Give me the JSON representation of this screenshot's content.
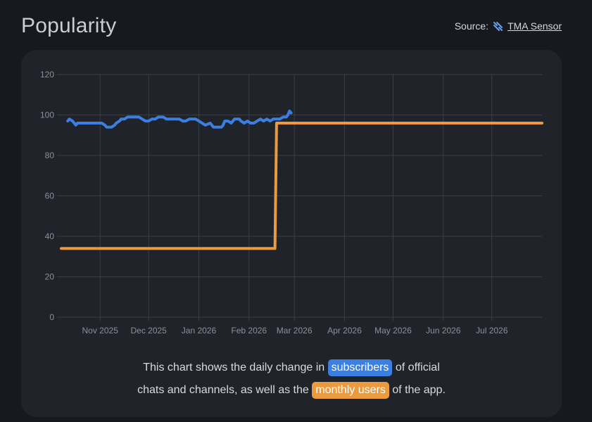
{
  "header": {
    "title": "Popularity",
    "source_prefix": "Source:",
    "source_name": "TMA Sensor",
    "source_icon": "tma-sensor-icon"
  },
  "colors": {
    "background": "#16191d",
    "card": "#20242a",
    "grid": "#3a3f45",
    "subscribers": "#3b7fe0",
    "monthly_users": "#eb9a3e"
  },
  "chart_data": {
    "type": "line",
    "title": "",
    "xlabel": "",
    "ylabel": "",
    "ylim": [
      0,
      120
    ],
    "yticks": [
      0,
      20,
      40,
      60,
      80,
      100,
      120
    ],
    "x_tick_labels": [
      "Nov 2025",
      "Dec 2025",
      "Jan 2026",
      "Feb 2026",
      "Mar 2026",
      "Apr 2026",
      "May 2026",
      "Jun 2026",
      "Jul 2026"
    ],
    "x_ticks": [
      "2025-11-01",
      "2025-12-01",
      "2026-01-01",
      "2026-02-01",
      "2026-03-01",
      "2026-04-01",
      "2026-05-01",
      "2026-06-01",
      "2026-07-01"
    ],
    "xlim": [
      "2025-10-08",
      "2026-08-01"
    ],
    "grid": true,
    "legend": "none",
    "series": [
      {
        "key": "subscribers",
        "color": "#3b7fe0",
        "points": [
          [
            "2025-10-12",
            97
          ],
          [
            "2025-10-13",
            98
          ],
          [
            "2025-10-15",
            97
          ],
          [
            "2025-10-16",
            96
          ],
          [
            "2025-10-17",
            95
          ],
          [
            "2025-10-18",
            96
          ],
          [
            "2025-10-22",
            96
          ],
          [
            "2025-10-26",
            96
          ],
          [
            "2025-10-30",
            96
          ],
          [
            "2025-11-02",
            96
          ],
          [
            "2025-11-04",
            95
          ],
          [
            "2025-11-05",
            94
          ],
          [
            "2025-11-08",
            94
          ],
          [
            "2025-11-10",
            95
          ],
          [
            "2025-11-11",
            96
          ],
          [
            "2025-11-13",
            97
          ],
          [
            "2025-11-14",
            98
          ],
          [
            "2025-11-16",
            98
          ],
          [
            "2025-11-18",
            99
          ],
          [
            "2025-11-22",
            99
          ],
          [
            "2025-11-25",
            99
          ],
          [
            "2025-11-27",
            98
          ],
          [
            "2025-11-29",
            97
          ],
          [
            "2025-12-01",
            97
          ],
          [
            "2025-12-03",
            98
          ],
          [
            "2025-12-05",
            98
          ],
          [
            "2025-12-07",
            99
          ],
          [
            "2025-12-10",
            99
          ],
          [
            "2025-12-12",
            98
          ],
          [
            "2025-12-16",
            98
          ],
          [
            "2025-12-20",
            98
          ],
          [
            "2025-12-22",
            97
          ],
          [
            "2025-12-24",
            97
          ],
          [
            "2025-12-26",
            98
          ],
          [
            "2025-12-30",
            98
          ],
          [
            "2026-01-01",
            97
          ],
          [
            "2026-01-03",
            96
          ],
          [
            "2026-01-05",
            95
          ],
          [
            "2026-01-08",
            96
          ],
          [
            "2026-01-10",
            94
          ],
          [
            "2026-01-13",
            94
          ],
          [
            "2026-01-15",
            94
          ],
          [
            "2026-01-16",
            95
          ],
          [
            "2026-01-17",
            97
          ],
          [
            "2026-01-19",
            97
          ],
          [
            "2026-01-21",
            96
          ],
          [
            "2026-01-23",
            98
          ],
          [
            "2026-01-26",
            98
          ],
          [
            "2026-01-27",
            97
          ],
          [
            "2026-01-29",
            96
          ],
          [
            "2026-01-31",
            97
          ],
          [
            "2026-02-02",
            96
          ],
          [
            "2026-02-04",
            96
          ],
          [
            "2026-02-06",
            97
          ],
          [
            "2026-02-08",
            98
          ],
          [
            "2026-02-10",
            97
          ],
          [
            "2026-02-12",
            98
          ],
          [
            "2026-02-14",
            97
          ],
          [
            "2026-02-16",
            98
          ],
          [
            "2026-02-18",
            98
          ],
          [
            "2026-02-20",
            98
          ],
          [
            "2026-02-22",
            99
          ],
          [
            "2026-02-24",
            99
          ],
          [
            "2026-02-25",
            100
          ],
          [
            "2026-02-26",
            102
          ],
          [
            "2026-02-27",
            101
          ]
        ]
      },
      {
        "key": "monthly_users",
        "color": "#eb9a3e",
        "points": [
          [
            "2025-10-08",
            34
          ],
          [
            "2026-02-17",
            34
          ],
          [
            "2026-02-18",
            96
          ],
          [
            "2026-08-01",
            96
          ]
        ]
      }
    ]
  },
  "caption": {
    "part1": "This chart shows the daily change in",
    "chip1": "subscribers",
    "part2": "of official",
    "part3": "chats and channels, as well as the",
    "chip2": "monthly users",
    "part4": "of the app."
  }
}
